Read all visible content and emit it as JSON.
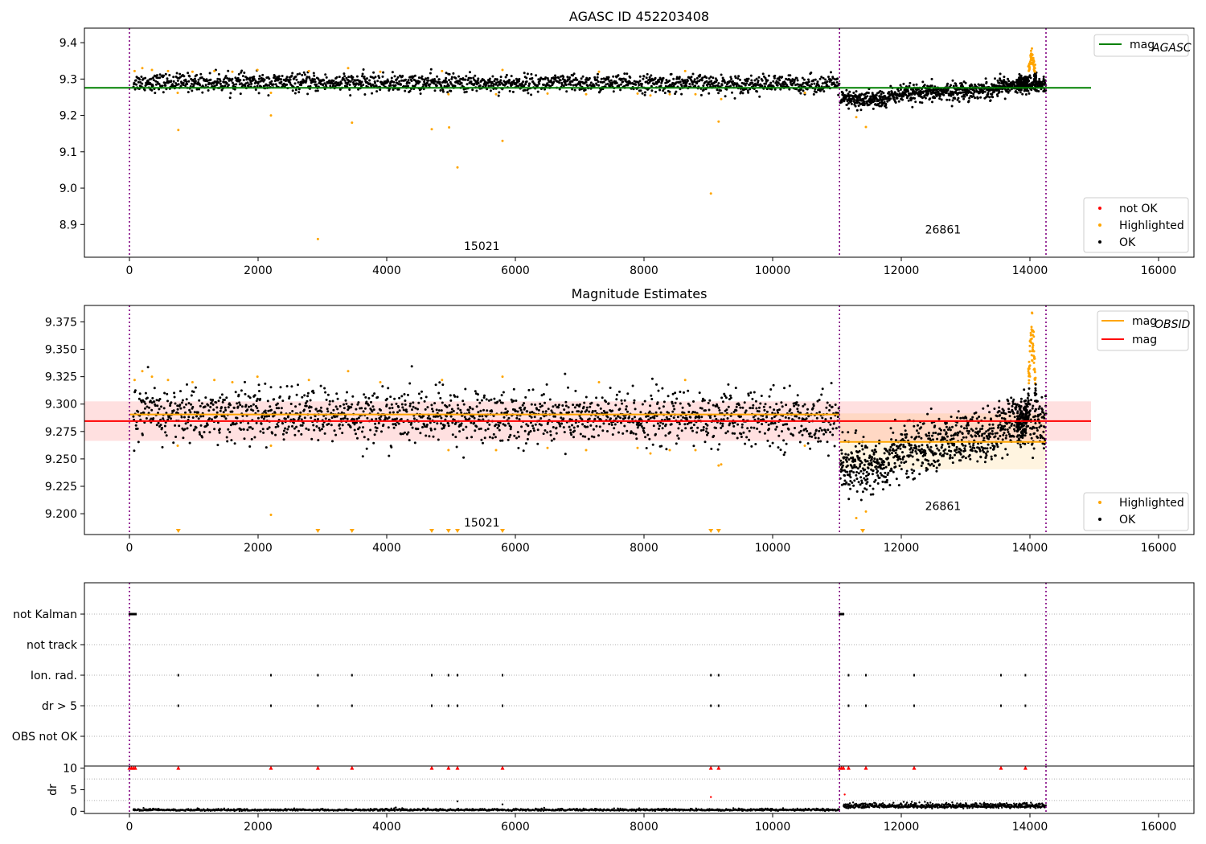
{
  "chart_data": [
    {
      "type": "scatter",
      "title": "AGASC ID 452203408",
      "xlabel": "",
      "ylabel": "",
      "xlim": [
        -700,
        16550
      ],
      "ylim": [
        8.81,
        9.44
      ],
      "xticks": [
        0,
        2000,
        4000,
        6000,
        8000,
        10000,
        12000,
        14000,
        16000
      ],
      "xtick_labels": [
        "0",
        "2000",
        "4000",
        "6000",
        "8000",
        "10000",
        "12000",
        "14000",
        "16000"
      ],
      "yticks": [
        8.9,
        9.0,
        9.1,
        9.2,
        9.3,
        9.4
      ],
      "ytick_labels": [
        "8.9",
        "9.0",
        "9.1",
        "9.2",
        "9.3",
        "9.4"
      ],
      "vlines": [
        0,
        11040,
        14250
      ],
      "lines": [
        {
          "name": "magAGASC",
          "label_main": "mag",
          "label_sub": "AGASC",
          "color": "#008000",
          "x": [
            -700,
            14950
          ],
          "y": [
            9.276,
            9.276
          ]
        }
      ],
      "segments": [
        {
          "x0": 60,
          "x1": 11040,
          "base": 9.291,
          "drift": -0.005,
          "noise": 0.012,
          "n": 1700
        },
        {
          "x0": 11050,
          "x1": 11800,
          "base": 9.243,
          "drift": 0.0,
          "noise": 0.012,
          "n": 220
        },
        {
          "x0": 11800,
          "x1": 13500,
          "base": 9.255,
          "drift": 0.018,
          "noise": 0.012,
          "n": 450
        },
        {
          "x0": 13500,
          "x1": 14250,
          "base": 9.283,
          "drift": 0.0,
          "noise": 0.011,
          "n": 230
        }
      ],
      "peak": {
        "x0": 13800,
        "x1": 14100,
        "center": 14030,
        "width": 50,
        "height": 0.08
      },
      "highlighted_outliers": [
        {
          "x": 760,
          "y": 9.16
        },
        {
          "x": 2200,
          "y": 9.2
        },
        {
          "x": 2930,
          "y": 8.86
        },
        {
          "x": 3460,
          "y": 9.18
        },
        {
          "x": 4700,
          "y": 9.162
        },
        {
          "x": 4970,
          "y": 9.167
        },
        {
          "x": 5100,
          "y": 9.057
        },
        {
          "x": 5800,
          "y": 9.13
        },
        {
          "x": 9040,
          "y": 8.985
        },
        {
          "x": 9160,
          "y": 9.183
        },
        {
          "x": 11300,
          "y": 9.195
        },
        {
          "x": 11450,
          "y": 9.168
        }
      ],
      "highlighted_high": [
        {
          "x": 80,
          "y": 9.322
        },
        {
          "x": 200,
          "y": 9.33
        },
        {
          "x": 350,
          "y": 9.325
        },
        {
          "x": 600,
          "y": 9.322
        },
        {
          "x": 980,
          "y": 9.32
        },
        {
          "x": 1320,
          "y": 9.322
        },
        {
          "x": 1600,
          "y": 9.32
        },
        {
          "x": 1990,
          "y": 9.325
        },
        {
          "x": 2790,
          "y": 9.322
        },
        {
          "x": 3400,
          "y": 9.33
        },
        {
          "x": 3900,
          "y": 9.32
        },
        {
          "x": 4860,
          "y": 9.322
        },
        {
          "x": 5800,
          "y": 9.325
        },
        {
          "x": 7300,
          "y": 9.32
        },
        {
          "x": 8640,
          "y": 9.322
        }
      ],
      "highlighted_low": [
        {
          "x": 750,
          "y": 9.262
        },
        {
          "x": 2200,
          "y": 9.262
        },
        {
          "x": 4960,
          "y": 9.258
        },
        {
          "x": 5700,
          "y": 9.258
        },
        {
          "x": 6500,
          "y": 9.26
        },
        {
          "x": 7100,
          "y": 9.258
        },
        {
          "x": 7900,
          "y": 9.26
        },
        {
          "x": 8100,
          "y": 9.255
        },
        {
          "x": 8400,
          "y": 9.258
        },
        {
          "x": 8800,
          "y": 9.258
        },
        {
          "x": 9200,
          "y": 9.245
        },
        {
          "x": 10500,
          "y": 9.262
        }
      ],
      "obsid_labels": [
        {
          "text": "15021",
          "x": 5200,
          "y": 8.83
        },
        {
          "text": "26861",
          "x": 12370,
          "y": 8.875
        }
      ],
      "legends": [
        {
          "loc": "upper right",
          "entries": [
            {
              "kind": "line",
              "color": "#008000",
              "label_main": "mag",
              "label_sub": "AGASC"
            }
          ]
        },
        {
          "loc": "lower right",
          "entries": [
            {
              "kind": "dot",
              "color": "#ff0000",
              "label": "not OK"
            },
            {
              "kind": "dot",
              "color": "#ffa500",
              "label": "Highlighted"
            },
            {
              "kind": "dot",
              "color": "#000000",
              "label": "OK"
            }
          ]
        }
      ]
    },
    {
      "type": "scatter",
      "title": "Magnitude Estimates",
      "xlabel": "",
      "ylabel": "",
      "xlim": [
        -700,
        16550
      ],
      "ylim": [
        9.181,
        9.39
      ],
      "xticks": [
        0,
        2000,
        4000,
        6000,
        8000,
        10000,
        12000,
        14000,
        16000
      ],
      "xtick_labels": [
        "0",
        "2000",
        "4000",
        "6000",
        "8000",
        "10000",
        "12000",
        "14000",
        "16000"
      ],
      "yticks": [
        9.2,
        9.225,
        9.25,
        9.275,
        9.3,
        9.325,
        9.35,
        9.375
      ],
      "ytick_labels": [
        "9.200",
        "9.225",
        "9.250",
        "9.275",
        "9.300",
        "9.325",
        "9.350",
        "9.375"
      ],
      "vlines": [
        0,
        11040,
        14250
      ],
      "bands": [
        {
          "color": "#ff0000",
          "opacity": 0.12,
          "x0": -700,
          "x1": 14950,
          "y0": 9.2665,
          "y1": 9.3025
        },
        {
          "color": "#ffa500",
          "opacity": 0.12,
          "x0": 11040,
          "x1": 14250,
          "y0": 9.2405,
          "y1": 9.2915
        }
      ],
      "lines": [
        {
          "name": "magOBSID-1",
          "color": "#ffa500",
          "x": [
            0,
            11040
          ],
          "y": [
            9.2905,
            9.2905
          ]
        },
        {
          "name": "magOBSID-2",
          "color": "#ffa500",
          "x": [
            11040,
            14250
          ],
          "y": [
            9.2655,
            9.2655
          ]
        },
        {
          "name": "mag",
          "color": "#ff0000",
          "x": [
            -700,
            14950
          ],
          "y": [
            9.2845,
            9.2845
          ]
        }
      ],
      "obsid_labels": [
        {
          "text": "15021",
          "x": 5200,
          "y": 9.1885
        },
        {
          "text": "26861",
          "x": 12370,
          "y": 9.2035
        }
      ],
      "down_markers_x": [
        760,
        2930,
        3460,
        4700,
        4960,
        5100,
        5800,
        9040,
        9160,
        11400
      ],
      "legends": [
        {
          "loc": "upper right",
          "entries": [
            {
              "kind": "line",
              "color": "#ffa500",
              "label_main": "mag",
              "label_sub": "OBSID"
            },
            {
              "kind": "line",
              "color": "#ff0000",
              "label": "mag"
            }
          ]
        },
        {
          "loc": "lower right",
          "entries": [
            {
              "kind": "dot",
              "color": "#ffa500",
              "label": "Highlighted"
            },
            {
              "kind": "dot",
              "color": "#000000",
              "label": "OK"
            }
          ]
        }
      ]
    },
    {
      "type": "scatter",
      "title": "",
      "xlabel": "",
      "ylabel": "",
      "xlim": [
        -700,
        16550
      ],
      "categories": [
        "not Kalman",
        "not track",
        "Ion. rad.",
        "dr > 5",
        "OBS not OK"
      ],
      "vlines": [
        0,
        11040,
        14250
      ],
      "flags": {
        "not Kalman": [
          0,
          20,
          40,
          60,
          80,
          100,
          11040,
          11060,
          11080,
          11100
        ],
        "not track": [],
        "Ion. rad.": [
          760,
          2200,
          2930,
          3460,
          4700,
          4960,
          5100,
          5800,
          9040,
          9160,
          11180,
          11450,
          12200,
          13550,
          13930
        ],
        "dr > 5": [
          760,
          2200,
          2930,
          3460,
          4700,
          4960,
          5100,
          5800,
          9040,
          9160,
          11180,
          11450,
          12200,
          13550,
          13930
        ],
        "OBS not OK": []
      }
    },
    {
      "type": "scatter",
      "title": "",
      "xlabel": "",
      "ylabel": "dr",
      "xlim": [
        -700,
        16550
      ],
      "ylim": [
        -0.5,
        10.5
      ],
      "yticks": [
        0,
        5,
        10
      ],
      "ytick_labels": [
        "0",
        "5",
        "10"
      ],
      "xticks": [
        0,
        2000,
        4000,
        6000,
        8000,
        10000,
        12000,
        14000,
        16000
      ],
      "xtick_labels": [
        "0",
        "2000",
        "4000",
        "6000",
        "8000",
        "10000",
        "12000",
        "14000",
        "16000"
      ],
      "vlines": [
        0,
        11040,
        14250
      ],
      "segments": [
        {
          "x0": 60,
          "x1": 11040,
          "base": 0.3,
          "noise": 0.15,
          "n": 1400
        },
        {
          "x0": 11100,
          "x1": 14250,
          "base": 1.2,
          "noise": 0.35,
          "n": 700
        }
      ],
      "clipped_markers_x": [
        0,
        30,
        60,
        90,
        760,
        2200,
        2930,
        3460,
        4700,
        4960,
        5100,
        5800,
        9040,
        9160,
        11040,
        11070,
        11100,
        11180,
        11450,
        12200,
        13550,
        13930
      ],
      "extra_points": [
        {
          "x": 5100,
          "y": 2.3
        },
        {
          "x": 5800,
          "y": 1.6
        },
        {
          "x": 9040,
          "y": 3.3
        },
        {
          "x": 11120,
          "y": 3.9
        }
      ]
    }
  ]
}
